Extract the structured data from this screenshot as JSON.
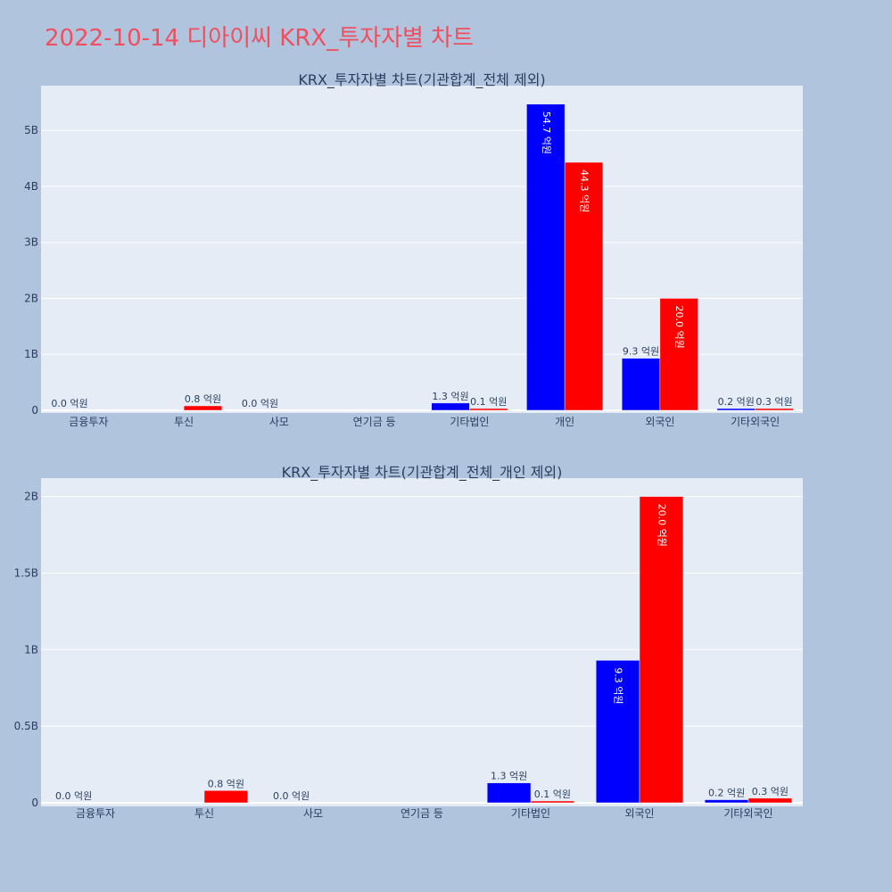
{
  "page_title": "2022-10-14 디아이씨 KRX_투자자별 차트",
  "colors": {
    "buy": "#0000ff",
    "sell": "#ff0000",
    "plot_bg": "#e5ecf6",
    "page_bg": "#b0c4de",
    "title": "#ef4f5f"
  },
  "chart_data": [
    {
      "type": "bar",
      "title": "KRX_투자자별 차트(기관합계_전체 제외)",
      "categories": [
        "금융투자",
        "투신",
        "사모",
        "연기금 등",
        "기타법인",
        "개인",
        "외국인",
        "기타외국인"
      ],
      "series": [
        {
          "values": [
            0,
            0,
            0,
            0,
            130000000,
            5470000000,
            930000000,
            20000000
          ]
        },
        {
          "values": [
            0,
            80000000,
            0,
            0,
            10000000,
            4430000000,
            2000000000,
            30000000
          ]
        }
      ],
      "labels": [
        [
          "0.0 억원",
          "",
          "0.0 억원",
          "",
          "1.3 억원",
          "54.7 억원",
          "9.3 억원",
          "0.2 억원"
        ],
        [
          "",
          "0.8 억원",
          "",
          "",
          "0.1 억원",
          "44.3 억원",
          "20.0 억원",
          "0.3 억원"
        ]
      ],
      "y_ticks": [
        {
          "value": 0,
          "label": "0"
        },
        {
          "value": 1000000000,
          "label": "1B"
        },
        {
          "value": 2000000000,
          "label": "2B"
        },
        {
          "value": 3000000000,
          "label": "3B"
        },
        {
          "value": 4000000000,
          "label": "4B"
        },
        {
          "value": 5000000000,
          "label": "5B"
        }
      ],
      "ylim": [
        0,
        5800000000
      ],
      "grid": true
    },
    {
      "type": "bar",
      "title": "KRX_투자자별 차트(기관합계_전체_개인 제외)",
      "categories": [
        "금융투자",
        "투신",
        "사모",
        "연기금 등",
        "기타법인",
        "외국인",
        "기타외국인"
      ],
      "series": [
        {
          "values": [
            0,
            0,
            0,
            0,
            130000000,
            930000000,
            20000000
          ]
        },
        {
          "values": [
            0,
            80000000,
            0,
            0,
            10000000,
            2000000000,
            30000000
          ]
        }
      ],
      "labels": [
        [
          "0.0 억원",
          "",
          "0.0 억원",
          "",
          "1.3 억원",
          "9.3 억원",
          "0.2 억원"
        ],
        [
          "",
          "0.8 억원",
          "",
          "",
          "0.1 억원",
          "20.0 억원",
          "0.3 억원"
        ]
      ],
      "y_ticks": [
        {
          "value": 0,
          "label": "0"
        },
        {
          "value": 500000000,
          "label": "0.5B"
        },
        {
          "value": 1000000000,
          "label": "1B"
        },
        {
          "value": 1500000000,
          "label": "1.5B"
        },
        {
          "value": 2000000000,
          "label": "2B"
        }
      ],
      "ylim": [
        0,
        2120000000
      ],
      "grid": true
    }
  ]
}
